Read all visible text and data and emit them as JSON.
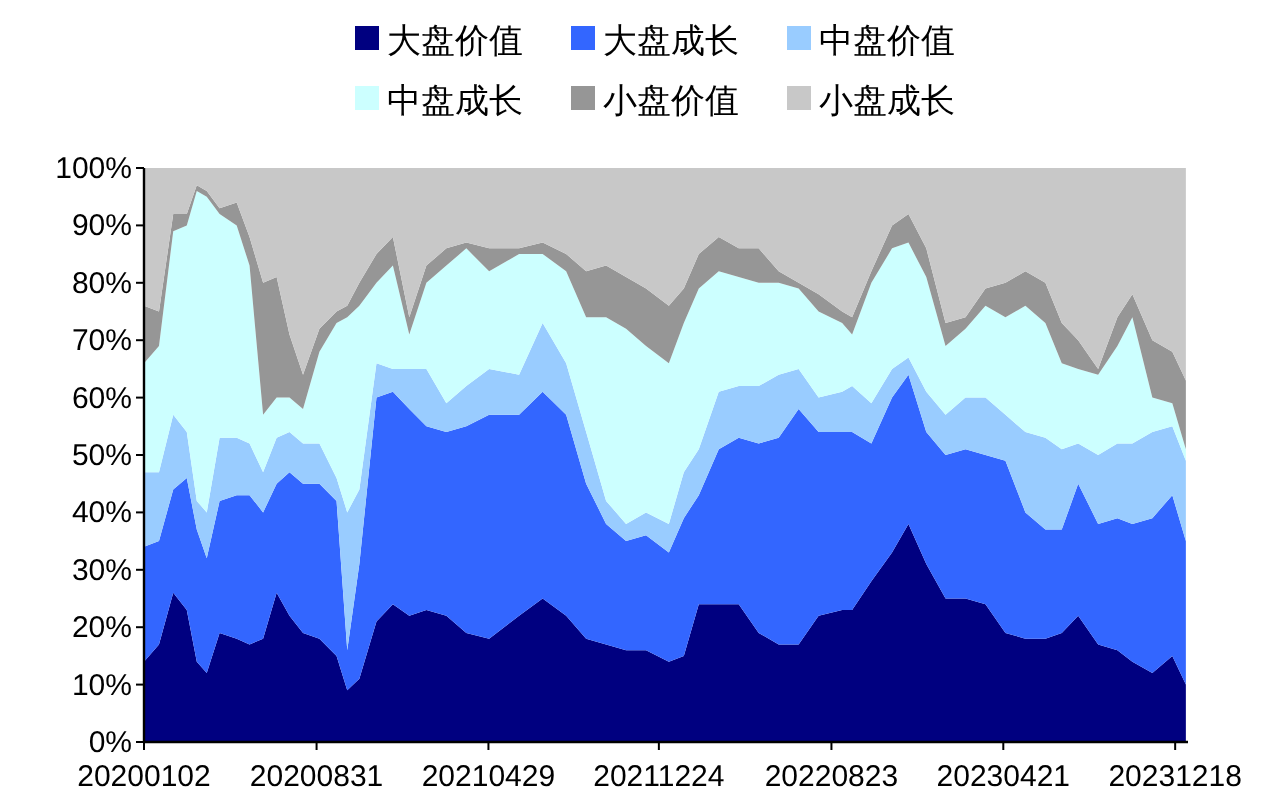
{
  "chart_data": {
    "type": "area",
    "stacked": true,
    "legend": "top",
    "x": [
      "2020-01-02",
      "2020-01-23",
      "2020-02-12",
      "2020-03-02",
      "2020-03-16",
      "2020-03-30",
      "2020-04-17",
      "2020-05-11",
      "2020-05-29",
      "2020-06-17",
      "2020-07-06",
      "2020-07-24",
      "2020-08-12",
      "2020-09-04",
      "2020-09-28",
      "2020-10-13",
      "2020-10-30",
      "2020-11-23",
      "2020-12-16",
      "2021-01-08",
      "2021-02-01",
      "2021-03-01",
      "2021-03-29",
      "2021-04-30",
      "2021-06-11",
      "2021-07-14",
      "2021-08-16",
      "2021-09-13",
      "2021-10-11",
      "2021-11-08",
      "2021-12-06",
      "2022-01-07",
      "2022-01-28",
      "2022-02-18",
      "2022-03-18",
      "2022-04-15",
      "2022-05-13",
      "2022-06-10",
      "2022-07-08",
      "2022-08-05",
      "2022-09-07",
      "2022-09-21",
      "2022-10-18",
      "2022-11-16",
      "2022-12-09",
      "2023-01-03",
      "2023-01-30",
      "2023-02-27",
      "2023-03-27",
      "2023-04-24",
      "2023-05-22",
      "2023-06-19",
      "2023-07-12",
      "2023-08-04",
      "2023-09-01",
      "2023-09-28",
      "2023-10-19",
      "2023-11-16",
      "2023-12-14",
      "2024-01-02"
    ],
    "xlim": [
      "2020-01-02",
      "2024-01-05"
    ],
    "xticks": [
      {
        "value": "2020-01-02",
        "label": "20200102"
      },
      {
        "value": "2020-08-31",
        "label": "20200831"
      },
      {
        "value": "2021-04-29",
        "label": "20210429"
      },
      {
        "value": "2021-12-24",
        "label": "20211224"
      },
      {
        "value": "2022-08-23",
        "label": "20220823"
      },
      {
        "value": "2023-04-21",
        "label": "20230421"
      },
      {
        "value": "2023-12-18",
        "label": "20231218"
      }
    ],
    "ylim": [
      0,
      100
    ],
    "yticks": [
      {
        "value": 0,
        "label": "0%"
      },
      {
        "value": 10,
        "label": "10%"
      },
      {
        "value": 20,
        "label": "20%"
      },
      {
        "value": 30,
        "label": "30%"
      },
      {
        "value": 40,
        "label": "40%"
      },
      {
        "value": 50,
        "label": "50%"
      },
      {
        "value": 60,
        "label": "60%"
      },
      {
        "value": 70,
        "label": "70%"
      },
      {
        "value": 80,
        "label": "80%"
      },
      {
        "value": 90,
        "label": "90%"
      },
      {
        "value": 100,
        "label": "100%"
      }
    ],
    "series": [
      {
        "name": "大盘价值",
        "color": "#000080",
        "values": [
          14,
          17,
          26,
          23,
          14,
          12,
          19,
          18,
          17,
          18,
          26,
          22,
          19,
          18,
          15,
          9,
          11,
          21,
          24,
          22,
          23,
          22,
          19,
          18,
          22,
          25,
          22,
          18,
          17,
          16,
          16,
          14,
          15,
          24,
          24,
          24,
          19,
          17,
          17,
          22,
          23,
          23,
          28,
          33,
          38,
          31,
          25,
          25,
          24,
          19,
          18,
          18,
          19,
          22,
          17,
          16,
          14,
          12,
          15,
          10
        ]
      },
      {
        "name": "大盘成长",
        "color": "#3366ff",
        "values": [
          20,
          18,
          18,
          23,
          23,
          20,
          23,
          25,
          26,
          22,
          19,
          25,
          26,
          27,
          27,
          7,
          20,
          39,
          37,
          36,
          32,
          32,
          36,
          39,
          35,
          36,
          35,
          27,
          21,
          19,
          20,
          19,
          24,
          19,
          27,
          29,
          33,
          36,
          41,
          32,
          31,
          31,
          24,
          27,
          26,
          23,
          25,
          26,
          26,
          30,
          22,
          19,
          18,
          23,
          21,
          23,
          24,
          27,
          28,
          25
        ]
      },
      {
        "name": "中盘价值",
        "color": "#99ccff",
        "values": [
          13,
          12,
          13,
          8,
          5,
          8,
          11,
          10,
          9,
          7,
          8,
          7,
          7,
          7,
          4,
          24,
          13,
          6,
          4,
          7,
          10,
          5,
          7,
          8,
          7,
          12,
          9,
          9,
          4,
          3,
          4,
          5,
          8,
          8,
          10,
          9,
          10,
          11,
          7,
          6,
          7,
          8,
          7,
          5,
          3,
          7,
          7,
          9,
          10,
          8,
          14,
          16,
          14,
          7,
          12,
          13,
          14,
          15,
          12,
          14
        ]
      },
      {
        "name": "中盘成长",
        "color": "#ccffff",
        "values": [
          19,
          22,
          32,
          36,
          54,
          55,
          39,
          37,
          31,
          10,
          7,
          6,
          6,
          16,
          27,
          34,
          32,
          14,
          18,
          6,
          15,
          24,
          24,
          17,
          21,
          12,
          16,
          20,
          32,
          34,
          29,
          28,
          26,
          28,
          21,
          19,
          18,
          16,
          14,
          15,
          12,
          9,
          21,
          21,
          20,
          20,
          12,
          12,
          16,
          17,
          22,
          20,
          15,
          13,
          14,
          17,
          22,
          6,
          4,
          2
        ]
      },
      {
        "name": "小盘价值",
        "color": "#969696",
        "values": [
          10,
          6,
          3,
          2,
          1,
          1,
          1,
          4,
          5,
          23,
          21,
          11,
          6,
          4,
          2,
          2,
          4,
          5,
          5,
          3,
          3,
          3,
          1,
          4,
          1,
          2,
          3,
          8,
          9,
          9,
          10,
          10,
          6,
          6,
          6,
          5,
          6,
          2,
          1,
          3,
          2,
          3,
          2,
          4,
          5,
          5,
          4,
          2,
          3,
          6,
          6,
          7,
          7,
          5,
          1,
          5,
          4,
          10,
          9,
          12
        ]
      },
      {
        "name": "小盘成长",
        "color": "#c8c8c8",
        "values": [
          24,
          25,
          8,
          8,
          3,
          4,
          7,
          6,
          12,
          20,
          19,
          29,
          36,
          28,
          25,
          24,
          20,
          15,
          12,
          26,
          17,
          14,
          13,
          14,
          14,
          13,
          15,
          18,
          17,
          19,
          21,
          24,
          21,
          15,
          12,
          14,
          14,
          18,
          20,
          22,
          25,
          26,
          18,
          10,
          8,
          14,
          27,
          26,
          21,
          20,
          18,
          20,
          27,
          30,
          35,
          26,
          22,
          30,
          32,
          37
        ]
      }
    ]
  }
}
